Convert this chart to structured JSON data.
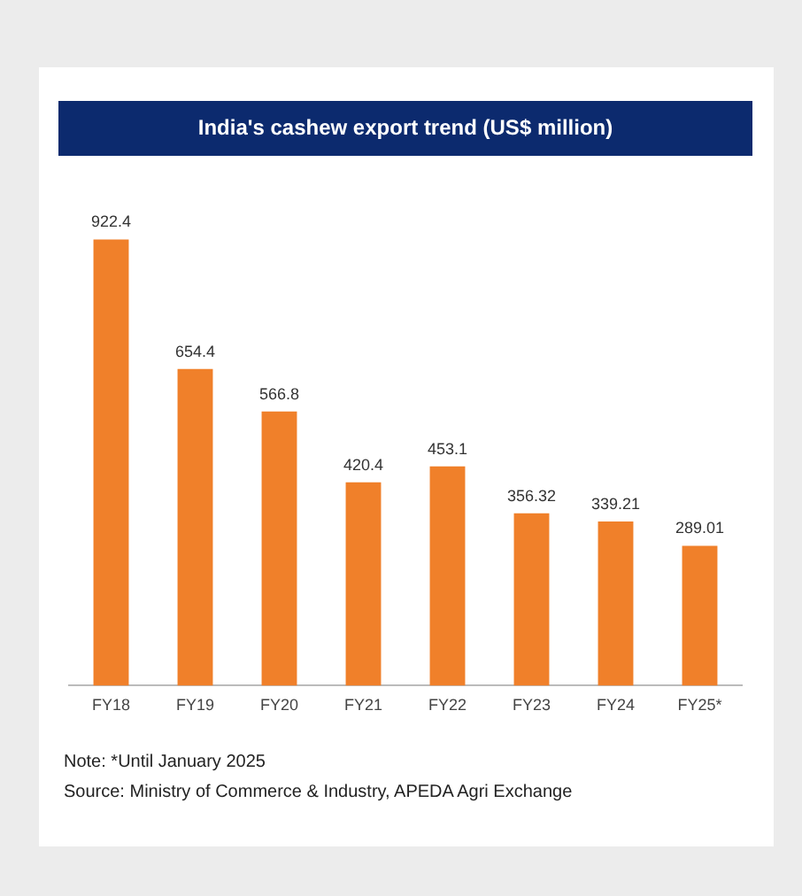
{
  "chart_data": {
    "type": "bar",
    "title": "India's cashew export trend (US$ million)",
    "categories": [
      "FY18",
      "FY19",
      "FY20",
      "FY21",
      "FY22",
      "FY23",
      "FY24",
      "FY25*"
    ],
    "values": [
      922.4,
      654.4,
      566.8,
      420.4,
      453.1,
      356.32,
      339.21,
      289.01
    ],
    "color": "#f0802a",
    "data_labels": true,
    "grid": false,
    "legend": false,
    "tick_labels": "x",
    "annotations": [
      "Note: *Until January 2025",
      "Source: Ministry of Commerce & Industry, APEDA Agri Exchange"
    ]
  }
}
